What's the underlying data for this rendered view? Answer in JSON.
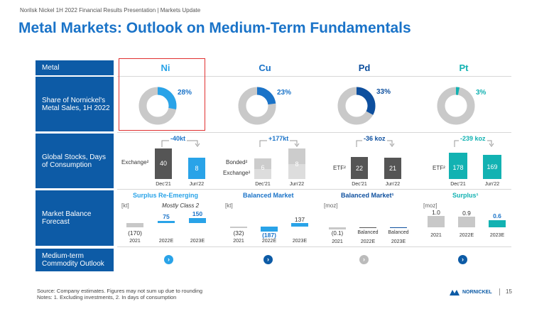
{
  "header": {
    "subtitle": "Norilsk Nickel 1H 2022 Financial Results Presentation | Markets Update",
    "title": "Metal Markets: Outlook on Medium-Term Fundamentals"
  },
  "rows": {
    "metal": "Metal",
    "share": "Share of Nornickel's Metal Sales, 1H 2022",
    "stocks": "Global Stocks, Days of Consumption",
    "balance": "Market Balance Forecast",
    "outlook": "Medium-term Commodity Outlook"
  },
  "metals": [
    {
      "name": "Ni",
      "color": "#29a3e8",
      "share": 28,
      "share_label": "28%"
    },
    {
      "name": "Cu",
      "color": "#1a73c8",
      "share": 23,
      "share_label": "23%"
    },
    {
      "name": "Pd",
      "color": "#0d4f9e",
      "share": 33,
      "share_label": "33%"
    },
    {
      "name": "Pt",
      "color": "#12b2b2",
      "share": 3,
      "share_label": "3%"
    }
  ],
  "stocks": {
    "ni": {
      "delta": "-40kt",
      "label": "Exchange²",
      "v1": "40",
      "v2": "8",
      "d1": "Dec'21",
      "d2": "Jun'22"
    },
    "cu": {
      "delta": "+177kt",
      "label1": "Bonded²",
      "label2": "Exchange²",
      "v1": "6",
      "v2": "8",
      "d1": "Dec'21",
      "d2": "Jun'22"
    },
    "pd": {
      "delta": "-36 koz",
      "label": "ETF²",
      "v1": "22",
      "v2": "21",
      "d1": "Dec'21",
      "d2": "Jun'22"
    },
    "pt": {
      "delta": "-239 koz",
      "label": "ETF²",
      "v1": "178",
      "v2": "169",
      "d1": "Dec'21",
      "d2": "Jun'22"
    }
  },
  "balance": {
    "ni": {
      "title": "Surplus Re-Emerging",
      "unit": "[kt]",
      "note": "Mostly Class 2",
      "values": [
        "(170)",
        "75",
        "150"
      ],
      "years": [
        "2021",
        "2022E",
        "2023E"
      ]
    },
    "cu": {
      "title": "Balanced Market",
      "unit": "[kt]",
      "values": [
        "(32)",
        "(187)",
        "137"
      ],
      "years": [
        "2021",
        "2022E",
        "2023E"
      ]
    },
    "pd": {
      "title": "Balanced Market¹",
      "unit": "[moz]",
      "values": [
        "(0.1)",
        "Balanced",
        "Balanced"
      ],
      "years": [
        "2021",
        "2022E",
        "2023E"
      ]
    },
    "pt": {
      "title": "Surplus¹",
      "unit": "[moz]",
      "values": [
        "1.0",
        "0.9",
        "0.6"
      ],
      "years": [
        "2021",
        "2022E",
        "2023E"
      ]
    }
  },
  "outlook": {
    "arrow": "›"
  },
  "footer": {
    "source": "Source: Company estimates. Figures may not sum up due to rounding",
    "notes": "Notes: 1. Excluding investments, 2. In days of consumption",
    "logo": "NORNICKEL",
    "page": "15"
  }
}
